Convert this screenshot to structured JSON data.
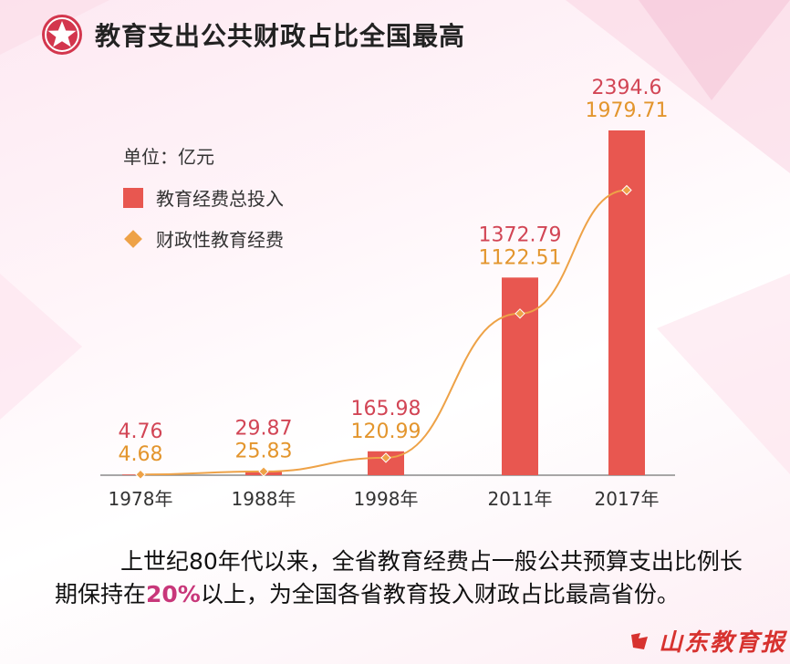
{
  "header": {
    "title": "教育支出公共财政占比全国最高",
    "icon": "star-icon",
    "accent": "#d3364d"
  },
  "legend": {
    "unit": "单位：亿元",
    "bar_label": "教育经费总投入",
    "line_label": "财政性教育经费"
  },
  "chart_data": {
    "type": "bar",
    "categories": [
      "1978年",
      "1988年",
      "1998年",
      "2011年",
      "2017年"
    ],
    "series": [
      {
        "name": "教育经费总投入",
        "kind": "bar",
        "color": "#e85750",
        "values": [
          4.76,
          29.87,
          165.98,
          1372.79,
          2394.6
        ],
        "labels": [
          "4.76",
          "29.87",
          "165.98",
          "1372.79",
          "2394.6"
        ]
      },
      {
        "name": "财政性教育经费",
        "kind": "line",
        "color": "#eea247",
        "values": [
          4.68,
          25.83,
          120.99,
          1122.51,
          1979.71
        ],
        "labels": [
          "4.68",
          "25.83",
          "120.99",
          "1122.51",
          "1979.71"
        ]
      }
    ],
    "title": "教育支出公共财政占比全国最高",
    "xlabel": "",
    "ylabel": "单位：亿元",
    "ylim": [
      0,
      2394.6
    ],
    "grid": false,
    "legend_position": "top-left"
  },
  "caption": {
    "part1": "上世纪80年代以来，全省教育经费占一般公共预算支出比例长期保持在",
    "highlight": "20%",
    "part2": "以上，为全国各省教育投入财政占比最高省份。"
  },
  "logo": {
    "text": "山东教育报",
    "icon": "logo-mark-icon",
    "color": "#d7322f"
  }
}
